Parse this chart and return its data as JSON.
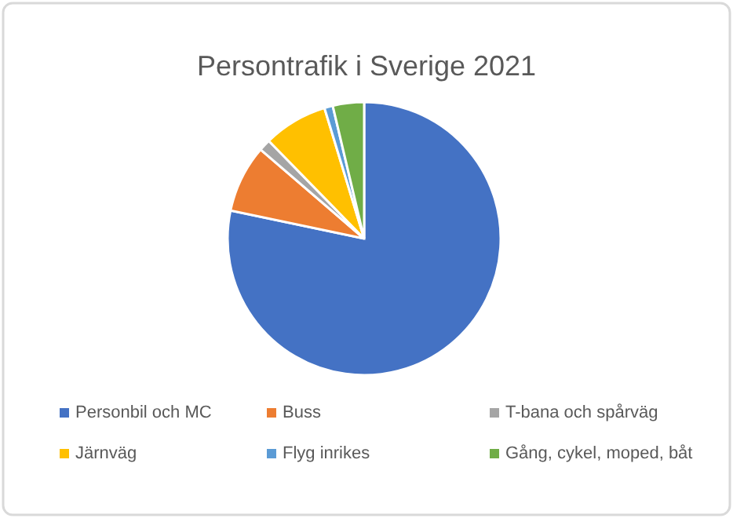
{
  "chart_data": {
    "type": "pie",
    "title": "Persontrafik i Sverige 2021",
    "categories": [
      "Personbil och MC",
      "Buss",
      "T-bana och spårväg",
      "Järnväg",
      "Flyg inrikes",
      "Gång, cykel, moped, båt"
    ],
    "values": [
      78.3,
      8.0,
      1.4,
      7.6,
      1.0,
      3.7
    ],
    "colors": [
      "#4472c4",
      "#ed7d31",
      "#a5a5a5",
      "#ffc000",
      "#5b9bd5",
      "#70ad47"
    ],
    "legend": "bottom"
  }
}
